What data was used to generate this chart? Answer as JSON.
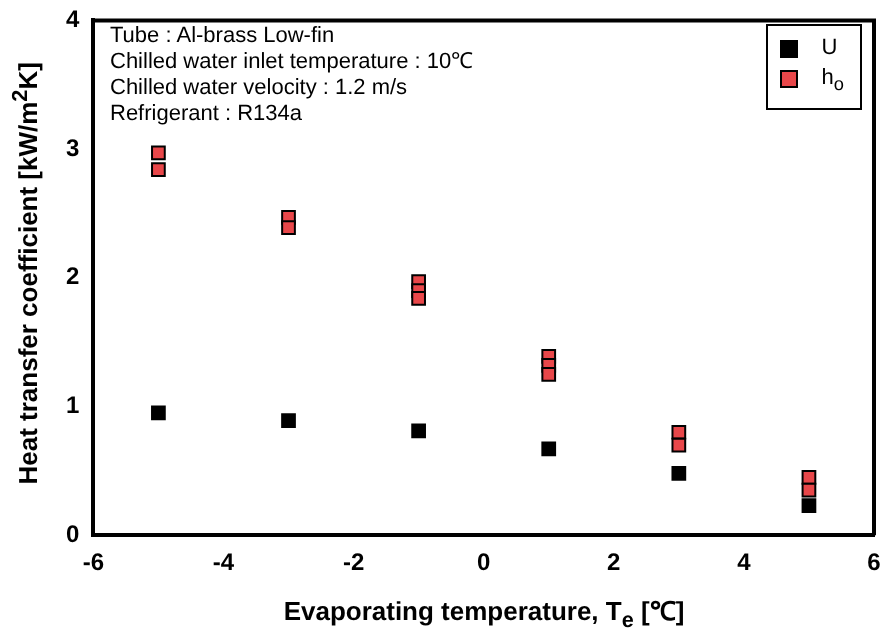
{
  "chart_data": {
    "type": "scatter",
    "xlabel": "Evaporating temperature, T$_{e}$ [℃]",
    "ylabel": "Heat transfer coefficient [kW/m$^{2}$K]",
    "annotations": [
      "Tube : Al-brass Low-fin",
      "Chilled water inlet temperature : 10℃",
      "Chilled water velocity : 1.2 m/s",
      "Refrigerant : R134a"
    ],
    "series": [
      {
        "name": "U",
        "color": "#000000",
        "x": [
          -5,
          -3,
          -1,
          1,
          3,
          5
        ],
        "values": [
          0.95,
          0.89,
          0.81,
          0.67,
          0.48,
          0.23
        ]
      },
      {
        "name": "h$_{o}$",
        "color": "#e8474a",
        "x": [
          -5,
          -5,
          -3,
          -3,
          -1,
          -1,
          -1,
          1,
          1,
          1,
          3,
          3,
          5,
          5
        ],
        "values": [
          2.97,
          2.84,
          2.47,
          2.39,
          1.97,
          1.9,
          1.84,
          1.39,
          1.32,
          1.25,
          0.8,
          0.7,
          0.45,
          0.35
        ]
      }
    ],
    "xlim": [
      -6,
      6
    ],
    "xticks": [
      -6,
      -4,
      -2,
      0,
      2,
      4,
      6
    ],
    "ylim": [
      0,
      4
    ],
    "yticks": [
      0,
      1,
      2,
      3,
      4
    ],
    "grid": false,
    "legend": "top right",
    "marker": "square"
  }
}
